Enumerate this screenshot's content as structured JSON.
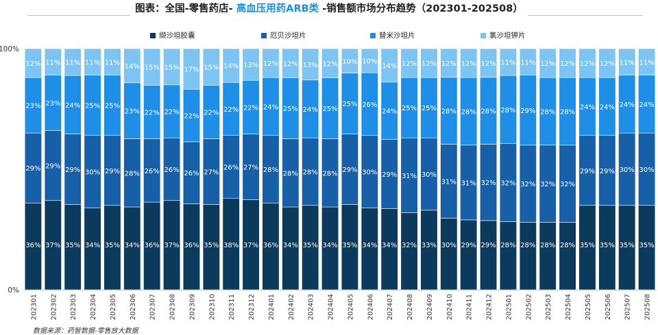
{
  "title": {
    "prefix": "图表：全国-零售药店- ",
    "highlight": "高血压用药ARB类",
    "suffix": " -销售额市场分布趋势（202301-202508）"
  },
  "source": "数据来源：药智数据-零售放大数据",
  "chart_data": {
    "type": "bar",
    "stacked": true,
    "normalized": true,
    "ylim": [
      0,
      100
    ],
    "y_ticks": [
      "0%",
      "100%"
    ],
    "categories": [
      "202301",
      "202302",
      "202303",
      "202304",
      "202305",
      "202306",
      "202307",
      "202308",
      "202309",
      "202310",
      "202311",
      "202312",
      "202401",
      "202402",
      "202403",
      "202404",
      "202405",
      "202406",
      "202407",
      "202408",
      "202409",
      "202410",
      "202411",
      "202412",
      "202501",
      "202502",
      "202503",
      "202504",
      "202505",
      "202506",
      "202507",
      "202508"
    ],
    "series": [
      {
        "name": "缬沙坦胶囊",
        "color": "#0b3a5c",
        "values": [
          36,
          37,
          35,
          34,
          35,
          34,
          36,
          37,
          36,
          35,
          38,
          37,
          36,
          34,
          35,
          34,
          35,
          34,
          34,
          32,
          33,
          30,
          29,
          29,
          28,
          28,
          28,
          28,
          35,
          35,
          35,
          35
        ]
      },
      {
        "name": "厄贝沙坦片",
        "color": "#1760a8",
        "values": [
          29,
          29,
          29,
          30,
          29,
          28,
          26,
          26,
          26,
          27,
          26,
          27,
          28,
          28,
          28,
          28,
          29,
          30,
          29,
          31,
          30,
          31,
          31,
          32,
          32,
          32,
          32,
          32,
          29,
          29,
          30,
          30
        ]
      },
      {
        "name": "替米沙坦片",
        "color": "#1e8ee6",
        "values": [
          23,
          23,
          24,
          25,
          25,
          23,
          22,
          22,
          22,
          22,
          22,
          22,
          24,
          25,
          24,
          25,
          25,
          26,
          24,
          25,
          25,
          28,
          28,
          28,
          28,
          29,
          28,
          28,
          24,
          24,
          24,
          24
        ]
      },
      {
        "name": "氯沙坦钾片",
        "color": "#7ec4f2",
        "values": [
          12,
          11,
          11,
          11,
          11,
          14,
          15,
          15,
          17,
          15,
          14,
          13,
          12,
          12,
          13,
          12,
          10,
          10,
          14,
          12,
          12,
          12,
          12,
          12,
          11,
          11,
          12,
          12,
          12,
          12,
          11,
          11
        ]
      }
    ],
    "label_suffix": "%"
  }
}
